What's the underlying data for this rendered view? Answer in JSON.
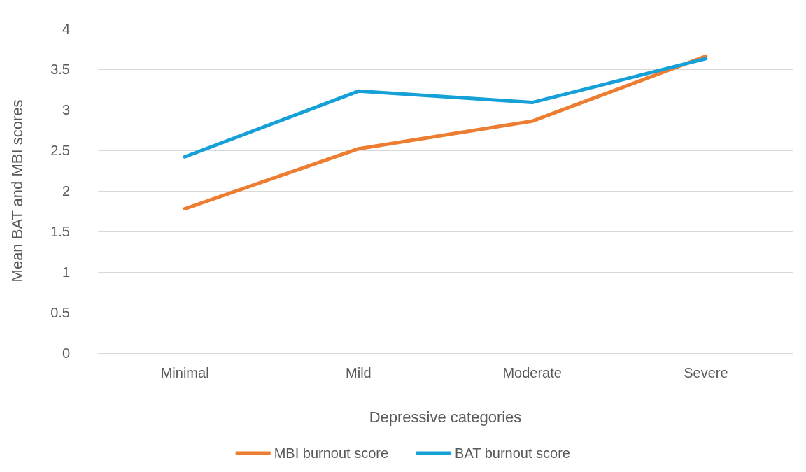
{
  "chart_data": {
    "type": "line",
    "xlabel": "Depressive categories",
    "ylabel": "Mean BAT and MBI scores",
    "categories": [
      "Minimal",
      "Mild",
      "Moderate",
      "Severe"
    ],
    "series": [
      {
        "name": "MBI burnout score",
        "color": "#ed7d31",
        "values": [
          1.78,
          2.52,
          2.86,
          3.66
        ]
      },
      {
        "name": "BAT burnout score",
        "color": "#15a0d8",
        "values": [
          2.42,
          3.23,
          3.09,
          3.63
        ]
      }
    ],
    "ylim": [
      0,
      4
    ],
    "yticks": [
      0,
      0.5,
      1,
      1.5,
      2,
      2.5,
      3,
      3.5,
      4
    ],
    "grid": "y",
    "legend": "bottom",
    "marker": "none",
    "line_style": "solid"
  }
}
